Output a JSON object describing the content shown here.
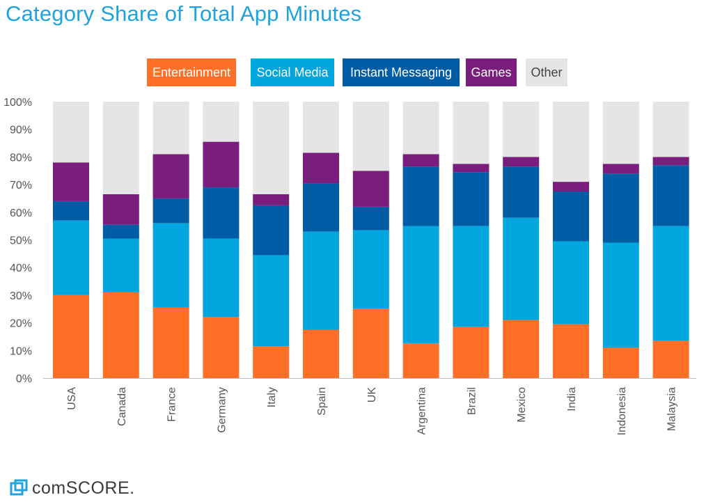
{
  "title": "Category Share of Total App Minutes",
  "logo": {
    "text": "comSCORE.",
    "icon": "comscore-logo-icon"
  },
  "chart_data": {
    "type": "bar",
    "stacked": true,
    "categories": [
      "USA",
      "Canada",
      "France",
      "Germany",
      "Italy",
      "Spain",
      "UK",
      "Argentina",
      "Brazil",
      "Mexico",
      "India",
      "Indonesia",
      "Malaysia"
    ],
    "series": [
      {
        "name": "Entertainment",
        "color": "#ff6f26",
        "values": [
          30,
          31,
          25.5,
          22,
          11.5,
          17.5,
          25,
          12.5,
          18.5,
          21,
          19.5,
          11,
          13.5
        ]
      },
      {
        "name": "Social Media",
        "color": "#00a6dd",
        "values": [
          27,
          19.5,
          30.5,
          28.5,
          33,
          35.5,
          28.5,
          42.5,
          36.5,
          37,
          30,
          38,
          41.5
        ]
      },
      {
        "name": "Instant Messaging",
        "color": "#005da5",
        "values": [
          7,
          5,
          9,
          18.5,
          18,
          17.5,
          8.5,
          21.5,
          19.5,
          18.5,
          18,
          25,
          22
        ]
      },
      {
        "name": "Games",
        "color": "#7a1d7d",
        "values": [
          14,
          11,
          16,
          16.5,
          4,
          11,
          13,
          4.5,
          3,
          3.5,
          3.5,
          3.5,
          3
        ]
      },
      {
        "name": "Other",
        "color": "#e5e5e5",
        "values": [
          22,
          33.5,
          19,
          14.5,
          33.5,
          18.5,
          25,
          19,
          22.5,
          20,
          29,
          22.5,
          20
        ]
      }
    ],
    "yticks": [
      "0%",
      "10%",
      "20%",
      "30%",
      "40%",
      "50%",
      "60%",
      "70%",
      "80%",
      "90%",
      "100%"
    ],
    "ylim": [
      0,
      100
    ],
    "legend_position": "top-center",
    "grid": false
  }
}
